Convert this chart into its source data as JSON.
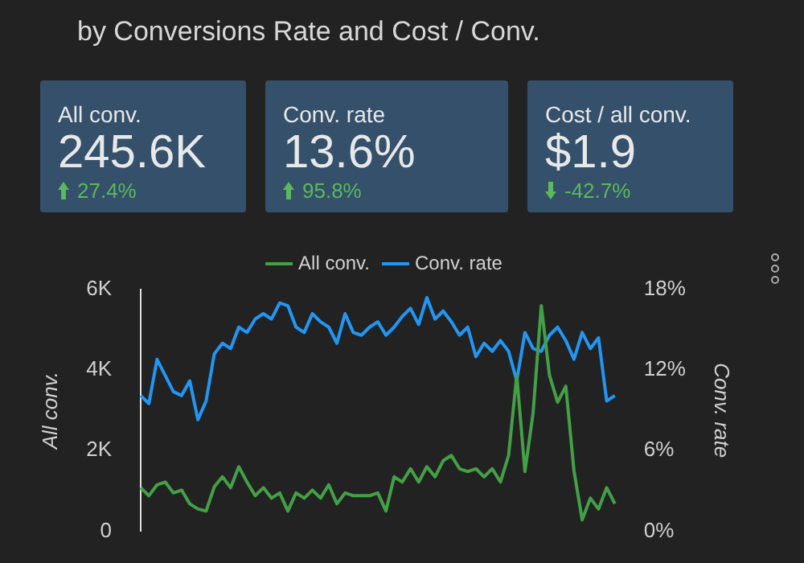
{
  "chart_data": [
    {
      "type": "other",
      "title": "All conv.",
      "annotations": [
        "245.6K",
        "27.4%"
      ]
    },
    {
      "type": "other",
      "title": "Conv. rate",
      "annotations": [
        "13.6%",
        "95.8%"
      ]
    },
    {
      "type": "other",
      "title": "Cost / all conv.",
      "annotations": [
        "$1.9",
        "-42.7%"
      ]
    },
    {
      "type": "line",
      "title": "by Conversions Rate and Cost / Conv.",
      "ylabel": "All conv.",
      "y2label": "Conv. rate",
      "legend": "top",
      "categories": [
        null,
        null,
        null,
        null,
        null,
        null,
        null,
        null,
        null,
        null,
        null,
        null,
        null,
        null,
        null,
        null,
        null,
        null,
        null,
        null,
        null,
        null,
        null,
        null,
        null,
        null,
        null,
        null,
        null,
        null,
        null,
        null,
        null,
        null,
        null,
        null,
        null,
        null,
        null,
        null,
        null,
        null,
        null,
        null,
        null,
        null,
        null,
        null,
        null,
        null,
        null,
        null,
        null,
        null,
        null,
        null,
        null,
        null,
        null
      ],
      "ylim": [
        0,
        6000
      ],
      "yticks": [
        {
          "value": 0,
          "label": "0"
        },
        {
          "value": 2000,
          "label": "2K"
        },
        {
          "value": 4000,
          "label": "4K"
        },
        {
          "value": 6000,
          "label": "6K"
        }
      ],
      "y2lim": [
        0,
        18
      ],
      "y2ticks": [
        {
          "value": 0,
          "label": "0%"
        },
        {
          "value": 6,
          "label": "6%"
        },
        {
          "value": 12,
          "label": "12%"
        },
        {
          "value": 18,
          "label": "18%"
        }
      ],
      "series": [
        {
          "name": "All conv.",
          "color": "#43a047",
          "values": [
            1080,
            880,
            1150,
            1220,
            950,
            1020,
            680,
            550,
            500,
            1100,
            1350,
            1080,
            1600,
            1220,
            880,
            1080,
            820,
            950,
            500,
            950,
            820,
            1020,
            820,
            1150,
            680,
            950,
            880,
            880,
            880,
            950,
            500,
            1350,
            1220,
            1550,
            1220,
            1600,
            1350,
            1750,
            1880,
            1550,
            1480,
            1550,
            1350,
            1550,
            1220,
            1880,
            3870,
            1480,
            2940,
            5600,
            3870,
            3200,
            3600,
            1500,
            280,
            820,
            550,
            1080,
            680
          ]
        },
        {
          "name": "Conv. rate",
          "color": "#2196f3",
          "axis": "y2",
          "values": [
            10.1,
            9.5,
            12.8,
            11.6,
            10.4,
            10.1,
            11.2,
            8.3,
            9.7,
            13.2,
            14.0,
            13.6,
            15.2,
            14.8,
            15.8,
            16.2,
            15.8,
            17.0,
            16.8,
            15.2,
            14.8,
            16.2,
            15.6,
            15.2,
            14.0,
            16.2,
            14.8,
            14.6,
            15.2,
            15.6,
            14.6,
            15.2,
            16.0,
            16.6,
            15.4,
            17.4,
            15.8,
            16.4,
            15.6,
            14.6,
            15.2,
            13.0,
            14.0,
            13.4,
            14.2,
            13.4,
            11.2,
            14.8,
            13.6,
            13.4,
            14.6,
            15.2,
            14.2,
            12.8,
            14.8,
            13.6,
            14.4,
            9.7,
            10.1
          ]
        }
      ]
    }
  ]
}
